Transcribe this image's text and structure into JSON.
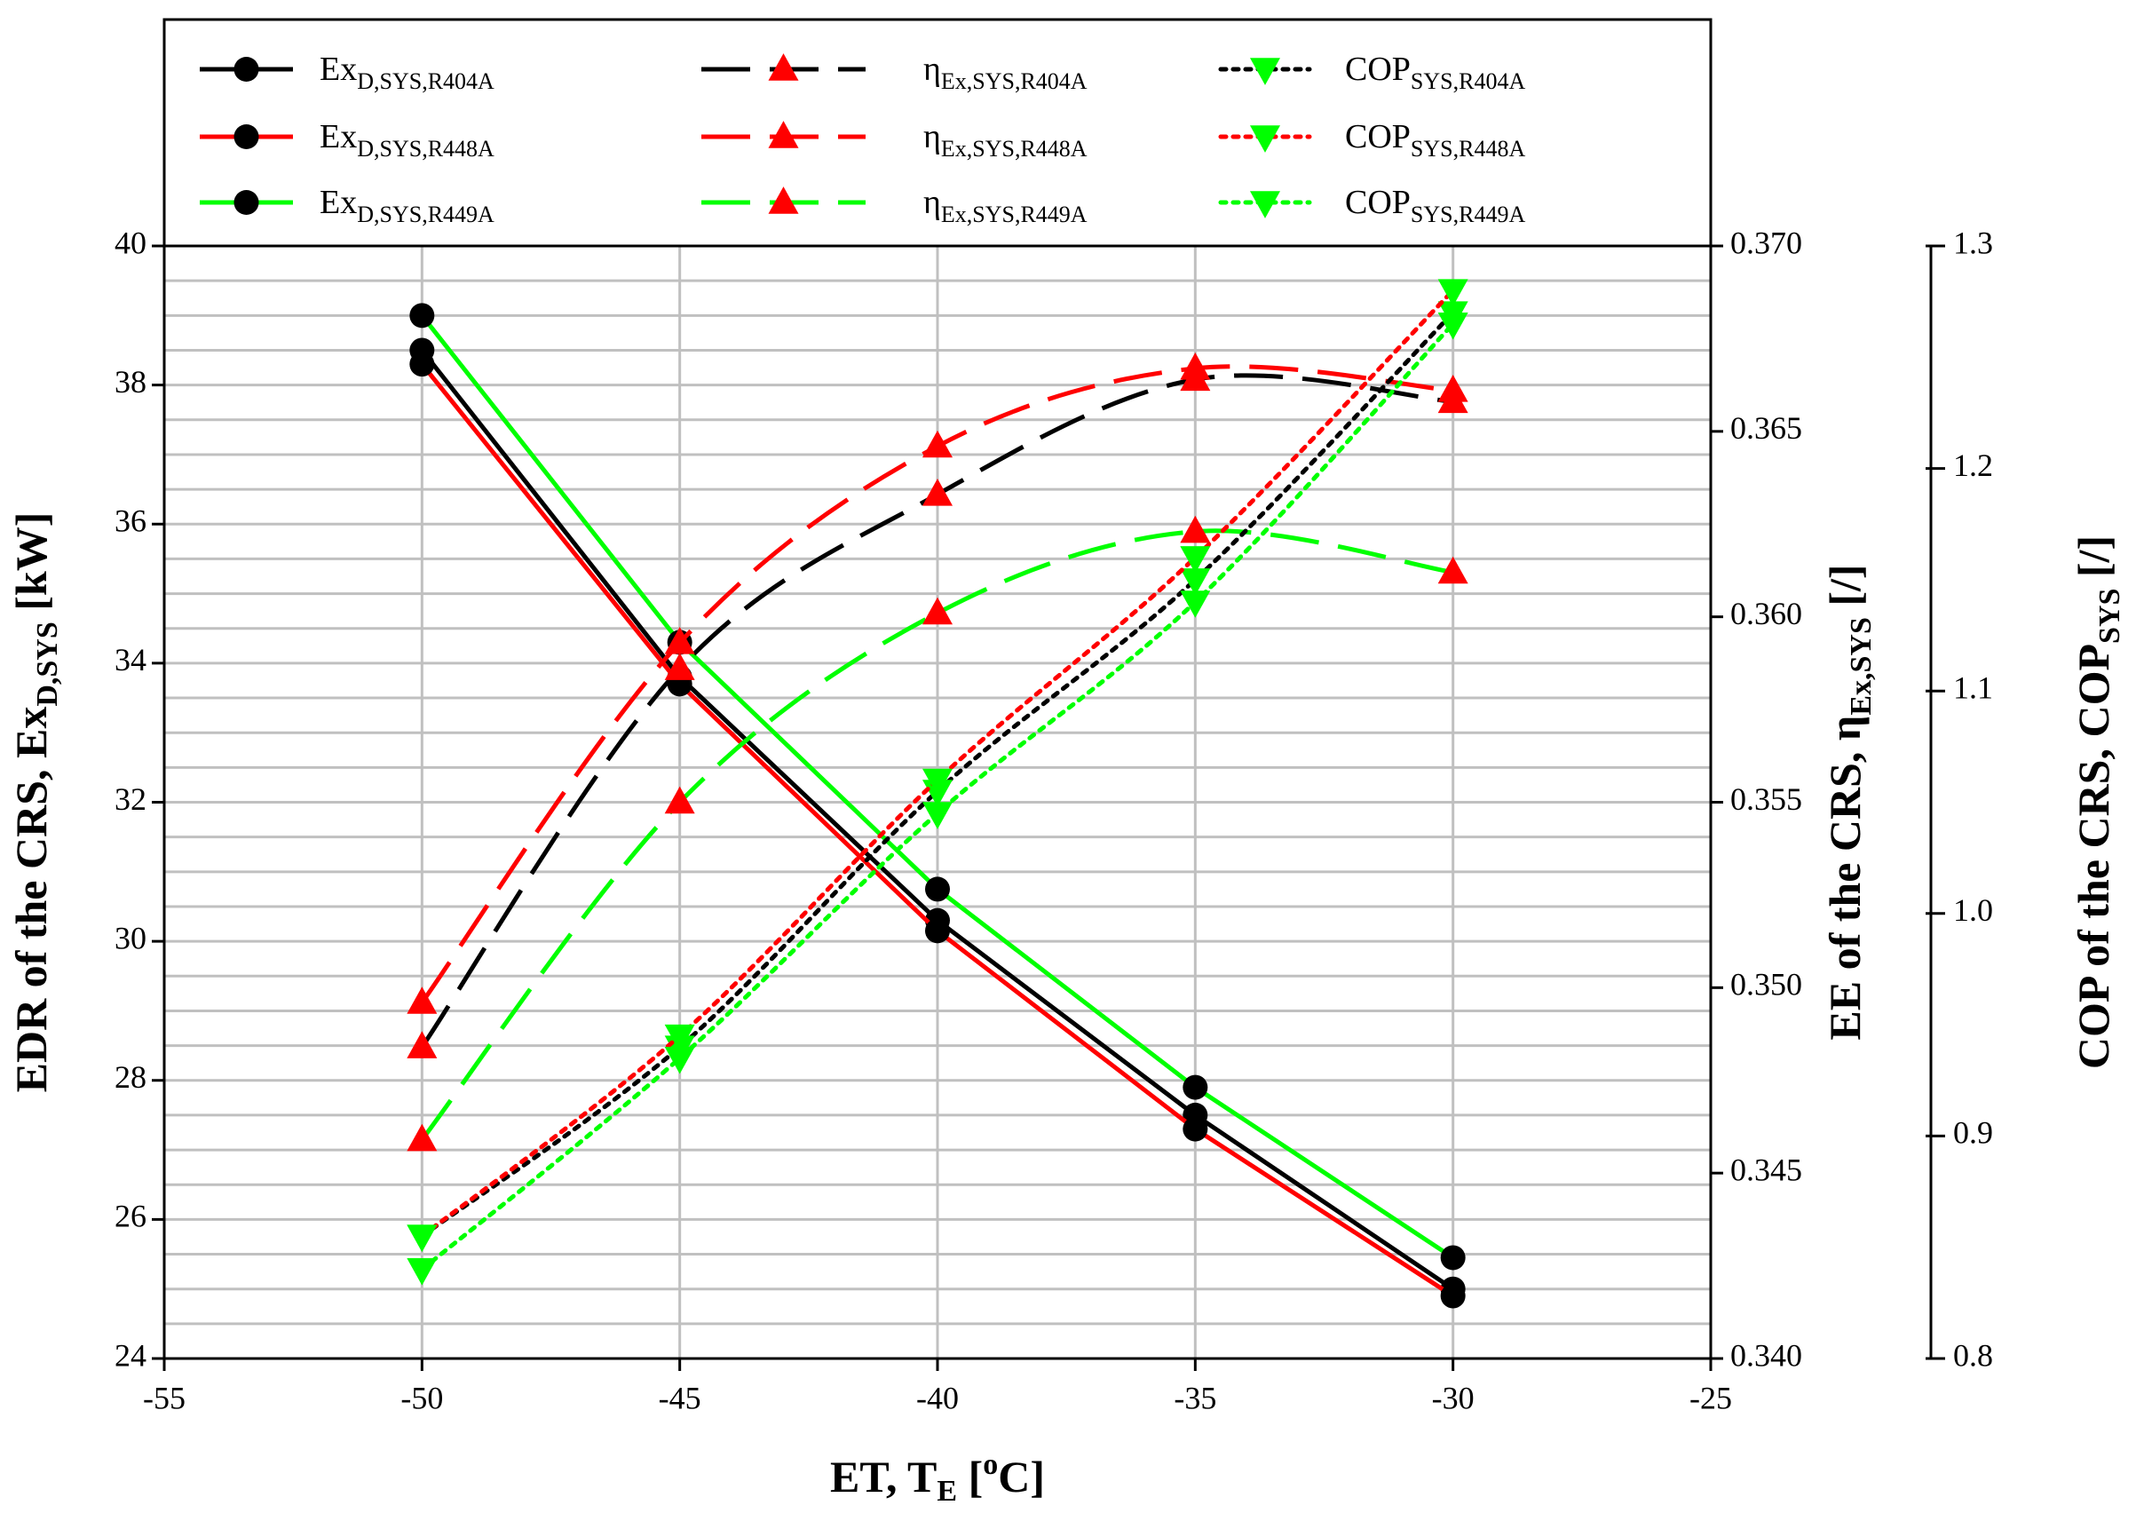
{
  "chart_data": {
    "type": "line",
    "x": [
      -50,
      -45,
      -40,
      -35,
      -30
    ],
    "xlabel": {
      "main": "ET, T",
      "sub": "E",
      "rest1": " [",
      "sup": "o",
      "rest2": "C]"
    },
    "xlim": [
      -55,
      -25
    ],
    "xticks": [
      "-55",
      "-50",
      "-45",
      "-40",
      "-35",
      "-30",
      "-25"
    ],
    "axes": {
      "left": {
        "label": {
          "main": "EDR of the CRS, Ex",
          "sub": "D,SYS",
          "rest": " [kW]"
        },
        "ylim": [
          24,
          40
        ],
        "ticks": [
          "24",
          "26",
          "28",
          "30",
          "32",
          "34",
          "36",
          "38",
          "40"
        ]
      },
      "right1": {
        "label": {
          "main": "EE of the CRS, η",
          "sub": "Ex,SYS",
          "rest": " [/]"
        },
        "ylim": [
          0.34,
          0.37
        ],
        "ticks": [
          "0.340",
          "0.345",
          "0.350",
          "0.355",
          "0.360",
          "0.365",
          "0.370"
        ]
      },
      "right2": {
        "label": {
          "main": "COP of the CRS, COP",
          "sub": "SYS",
          "rest": " [/]"
        },
        "ylim": [
          0.8,
          1.3
        ],
        "ticks": [
          "0.8",
          "0.9",
          "1.0",
          "1.1",
          "1.2",
          "1.3"
        ]
      }
    },
    "grid": true,
    "legend_position": "top",
    "series": [
      {
        "name": "ExD,SYS,R404A",
        "label_main": "Ex",
        "label_sub": "D,SYS,R404A",
        "axis": "left",
        "color": "#000000",
        "dash": "solid",
        "marker": "circle",
        "marker_color": "#000000",
        "values": [
          38.5,
          33.8,
          30.3,
          27.5,
          25.0
        ]
      },
      {
        "name": "ExD,SYS,R448A",
        "label_main": "Ex",
        "label_sub": "D,SYS,R448A",
        "axis": "left",
        "color": "#ff0000",
        "dash": "solid",
        "marker": "circle",
        "marker_color": "#000000",
        "values": [
          38.3,
          33.7,
          30.15,
          27.3,
          24.9
        ]
      },
      {
        "name": "ExD,SYS,R449A",
        "label_main": "Ex",
        "label_sub": "D,SYS,R449A",
        "axis": "left",
        "color": "#00ff00",
        "dash": "solid",
        "marker": "circle",
        "marker_color": "#000000",
        "values": [
          39.0,
          34.3,
          30.75,
          27.9,
          25.45
        ]
      },
      {
        "name": "ηEx,SYS,R404A",
        "label_main": "η",
        "label_sub": "Ex,SYS,R404A",
        "axis": "right1",
        "color": "#000000",
        "dash": "long",
        "marker": "triangle-up",
        "marker_color": "#ff0000",
        "values": [
          0.3484,
          0.3586,
          0.3633,
          0.3664,
          0.3658
        ]
      },
      {
        "name": "ηEx,SYS,R448A",
        "label_main": "η",
        "label_sub": "Ex,SYS,R448A",
        "axis": "right1",
        "color": "#ff0000",
        "dash": "long",
        "marker": "triangle-up",
        "marker_color": "#ff0000",
        "values": [
          0.3496,
          0.3593,
          0.3646,
          0.3667,
          0.3661
        ]
      },
      {
        "name": "ηEx,SYS,R449A",
        "label_main": "η",
        "label_sub": "Ex,SYS,R449A",
        "axis": "right1",
        "color": "#00ff00",
        "dash": "long",
        "marker": "triangle-up",
        "marker_color": "#ff0000",
        "values": [
          0.3459,
          0.355,
          0.3601,
          0.3623,
          0.3612
        ]
      },
      {
        "name": "COPSYS,R404A",
        "label_main": "COP",
        "label_sub": "SYS,R404A",
        "axis": "right2",
        "color": "#000000",
        "dash": "dot",
        "marker": "triangle-down",
        "marker_color": "#00ff00",
        "values": [
          0.855,
          0.94,
          1.055,
          1.15,
          1.27
        ]
      },
      {
        "name": "COPSYS,R448A",
        "label_main": "COP",
        "label_sub": "SYS,R448A",
        "axis": "right2",
        "color": "#ff0000",
        "dash": "dot",
        "marker": "triangle-down",
        "marker_color": "#00ff00",
        "values": [
          0.855,
          0.945,
          1.06,
          1.16,
          1.28
        ]
      },
      {
        "name": "COPSYS,R449A",
        "label_main": "COP",
        "label_sub": "SYS,R449A",
        "axis": "right2",
        "color": "#00ff00",
        "dash": "dot",
        "marker": "triangle-down",
        "marker_color": "#00ff00",
        "values": [
          0.84,
          0.935,
          1.045,
          1.14,
          1.265
        ]
      }
    ]
  }
}
